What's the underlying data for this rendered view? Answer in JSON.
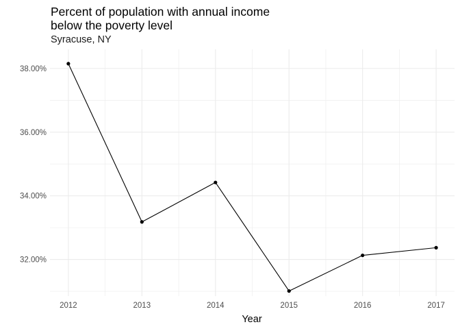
{
  "chart_data": {
    "type": "line",
    "title": "Percent of population with annual income\nbelow the poverty level",
    "subtitle": "Syracuse, NY",
    "xlabel": "Year",
    "ylabel": "",
    "x": [
      2012,
      2013,
      2014,
      2015,
      2016,
      2017
    ],
    "x_tick_labels": [
      "2012",
      "2013",
      "2014",
      "2015",
      "2016",
      "2017"
    ],
    "series": [
      {
        "values": [
          38.15,
          33.18,
          34.42,
          31.01,
          32.13,
          32.37
        ]
      }
    ],
    "y_ticks": [
      32,
      34,
      36,
      38
    ],
    "y_tick_labels": [
      "32.00%",
      "34.00%",
      "36.00%",
      "38.00%"
    ],
    "xlim": [
      2011.75,
      2017.25
    ],
    "ylim": [
      30.85,
      38.6
    ],
    "grid": true,
    "colors": {
      "line": "#000000",
      "grid": "#ebebeb",
      "tick_text": "#4d4d4d"
    }
  }
}
